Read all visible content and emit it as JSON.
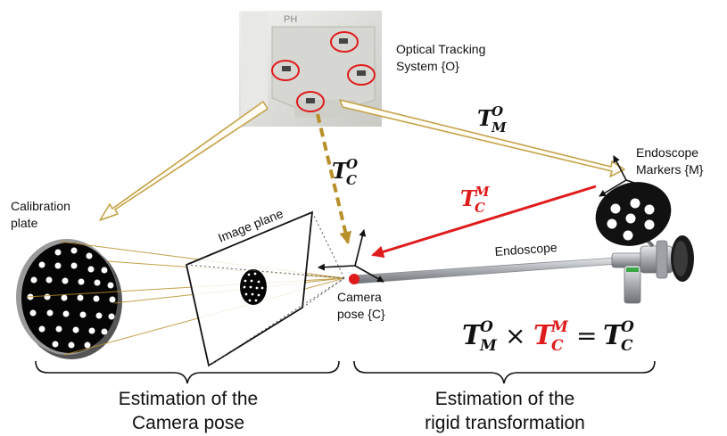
{
  "labels": {
    "optical_tracking_line1": "Optical Tracking",
    "optical_tracking_line2": "System {O}",
    "calibration_line1": "Calibration",
    "calibration_line2": "plate",
    "image_plane": "Image plane",
    "endoscope_markers_line1": "Endoscope",
    "endoscope_markers_line2": "Markers {M}",
    "endoscope": "Endoscope",
    "camera_pose_line1": "Camera",
    "camera_pose_line2": "pose {C}",
    "estimation_camera_line1": "Estimation of the",
    "estimation_camera_line2": "Camera pose",
    "estimation_rigid_line1": "Estimation of the",
    "estimation_rigid_line2": "rigid transformation",
    "device_text": "PH"
  },
  "math": {
    "T": "T",
    "times": "×",
    "equals": "=",
    "tmo": {
      "sup": "O",
      "sub": "M"
    },
    "tco": {
      "sup": "O",
      "sub": "C"
    },
    "tcm": {
      "sup": "M",
      "sub": "C"
    }
  },
  "colors": {
    "gold_arrow": "#c5a24a",
    "gold_dashed": "#b8902a",
    "red": "#e01b1b",
    "black": "#111111"
  }
}
